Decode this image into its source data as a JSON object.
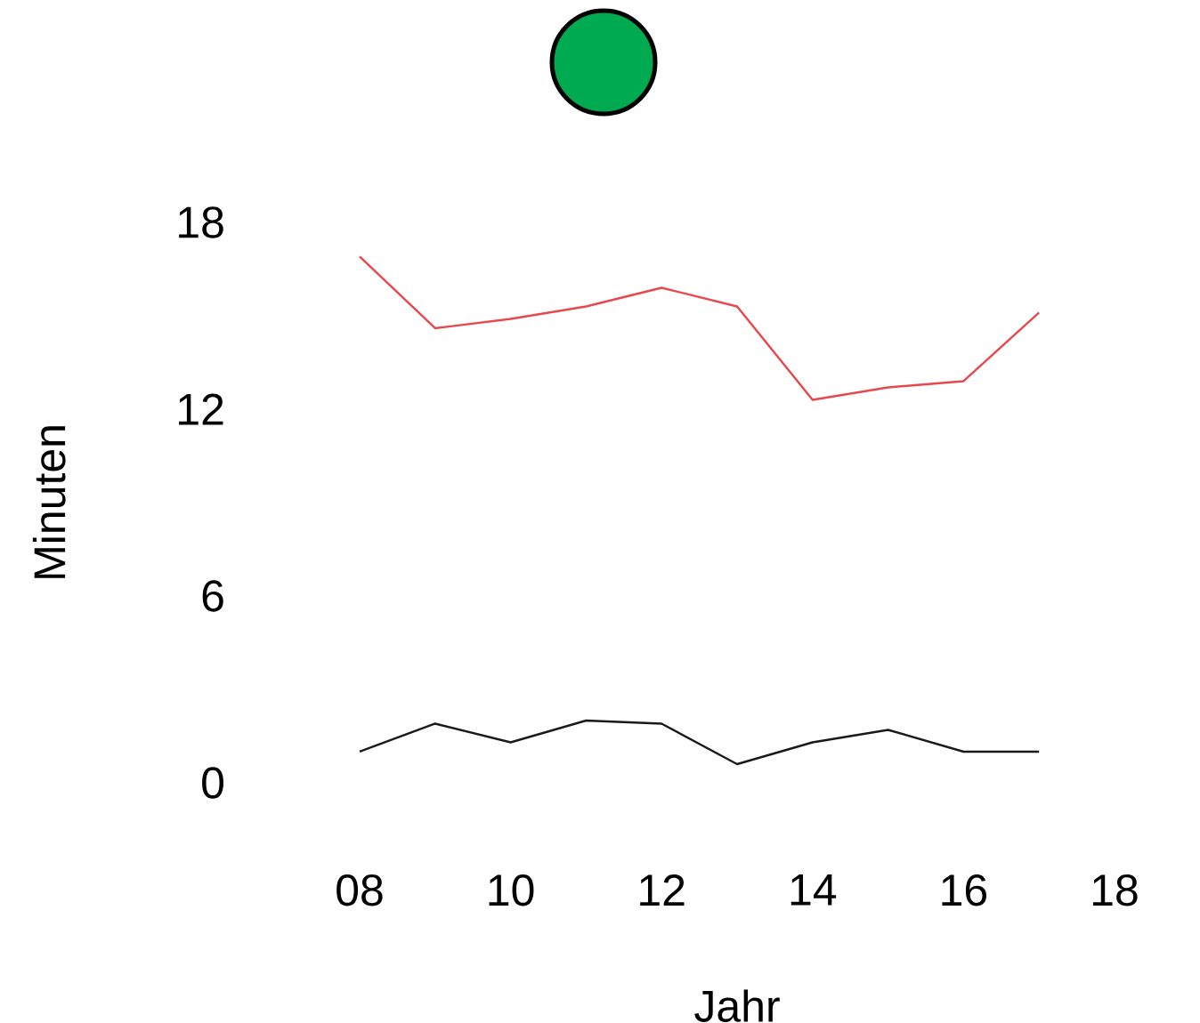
{
  "chart_data": {
    "type": "line",
    "xlabel": "Jahr",
    "ylabel": "Minuten",
    "x": [
      8,
      9,
      10,
      11,
      12,
      13,
      14,
      15,
      16,
      17
    ],
    "series": [
      {
        "color": "#e8474c",
        "values": [
          16.9,
          14.6,
          14.9,
          15.3,
          15.9,
          15.3,
          12.3,
          12.7,
          12.9,
          15.1
        ]
      },
      {
        "color": "#1a1a1a",
        "values": [
          1.0,
          1.9,
          1.3,
          2.0,
          1.9,
          0.6,
          1.3,
          1.7,
          1.0,
          1.0
        ]
      }
    ],
    "xlim": [
      8,
      18
    ],
    "ylim": [
      0,
      18
    ],
    "xticks": [
      {
        "value": 8,
        "label": "08"
      },
      10,
      12,
      14,
      16,
      18
    ],
    "yticks": [
      0,
      6,
      12,
      18
    ],
    "grid": false,
    "marker": "none",
    "line_style": "solid"
  }
}
